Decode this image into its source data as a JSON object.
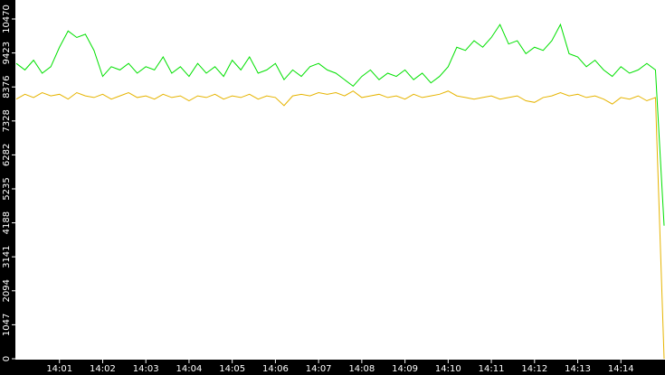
{
  "chart_data": {
    "type": "line",
    "x": [
      0,
      0.2,
      0.4,
      0.6,
      0.8,
      1,
      1.2,
      1.4,
      1.6,
      1.8,
      2,
      2.2,
      2.4,
      2.6,
      2.8,
      3,
      3.2,
      3.4,
      3.6,
      3.8,
      4,
      4.2,
      4.4,
      4.6,
      4.8,
      5,
      5.2,
      5.4,
      5.6,
      5.8,
      6,
      6.2,
      6.4,
      6.6,
      6.8,
      7,
      7.2,
      7.4,
      7.6,
      7.8,
      8,
      8.2,
      8.4,
      8.6,
      8.8,
      9,
      9.2,
      9.4,
      9.6,
      9.8,
      10,
      10.2,
      10.4,
      10.6,
      10.8,
      11,
      11.2,
      11.4,
      11.6,
      11.8,
      12,
      12.2,
      12.4,
      12.6,
      12.8,
      13,
      13.2,
      13.4,
      13.6,
      13.8,
      14,
      14.2,
      14.4,
      14.6,
      14.8,
      15
    ],
    "series": [
      {
        "color": "#00e000",
        "values": [
          9100,
          8900,
          9200,
          8800,
          9000,
          9600,
          10100,
          9900,
          10000,
          9500,
          8700,
          9000,
          8900,
          9100,
          8800,
          9000,
          8900,
          9300,
          8800,
          9000,
          8700,
          9100,
          8800,
          9000,
          8700,
          9200,
          8900,
          9300,
          8800,
          8900,
          9100,
          8600,
          8900,
          8700,
          9000,
          9100,
          8900,
          8800,
          8600,
          8400,
          8700,
          8900,
          8600,
          8800,
          8700,
          8900,
          8600,
          8800,
          8500,
          8700,
          9000,
          9600,
          9500,
          9800,
          9600,
          9900,
          10300,
          9700,
          9800,
          9400,
          9600,
          9500,
          9800,
          10300,
          9400,
          9300,
          9000,
          9200,
          8900,
          8700,
          9000,
          8800,
          8900,
          9100,
          8900,
          4100
        ]
      },
      {
        "color": "#e6b400",
        "values": [
          8000,
          8150,
          8050,
          8200,
          8100,
          8150,
          8000,
          8200,
          8100,
          8050,
          8150,
          8000,
          8100,
          8200,
          8050,
          8100,
          8000,
          8150,
          8050,
          8100,
          7950,
          8100,
          8050,
          8150,
          8000,
          8100,
          8050,
          8150,
          8000,
          8100,
          8050,
          7800,
          8100,
          8150,
          8100,
          8200,
          8150,
          8200,
          8100,
          8250,
          8050,
          8100,
          8150,
          8050,
          8100,
          8000,
          8150,
          8050,
          8100,
          8150,
          8250,
          8100,
          8050,
          8000,
          8050,
          8100,
          8000,
          8050,
          8100,
          7950,
          7900,
          8050,
          8100,
          8200,
          8100,
          8150,
          8050,
          8100,
          8000,
          7850,
          8050,
          8000,
          8100,
          7950,
          8050,
          0
        ]
      }
    ],
    "xlim": [
      0,
      15
    ],
    "ylim": [
      0,
      11055
    ],
    "xticks": [
      {
        "value": 1,
        "label": "14:01"
      },
      {
        "value": 2,
        "label": "14:02"
      },
      {
        "value": 3,
        "label": "14:03"
      },
      {
        "value": 4,
        "label": "14:04"
      },
      {
        "value": 5,
        "label": "14:05"
      },
      {
        "value": 6,
        "label": "14:06"
      },
      {
        "value": 7,
        "label": "14:07"
      },
      {
        "value": 8,
        "label": "14:08"
      },
      {
        "value": 9,
        "label": "14:09"
      },
      {
        "value": 10,
        "label": "14:10"
      },
      {
        "value": 11,
        "label": "14:11"
      },
      {
        "value": 12,
        "label": "14:12"
      },
      {
        "value": 13,
        "label": "14:13"
      },
      {
        "value": 14,
        "label": "14:14"
      }
    ],
    "yticks": [
      0,
      1047,
      2094,
      3141,
      4188,
      5235,
      6282,
      7328,
      8376,
      9423,
      10470
    ]
  }
}
